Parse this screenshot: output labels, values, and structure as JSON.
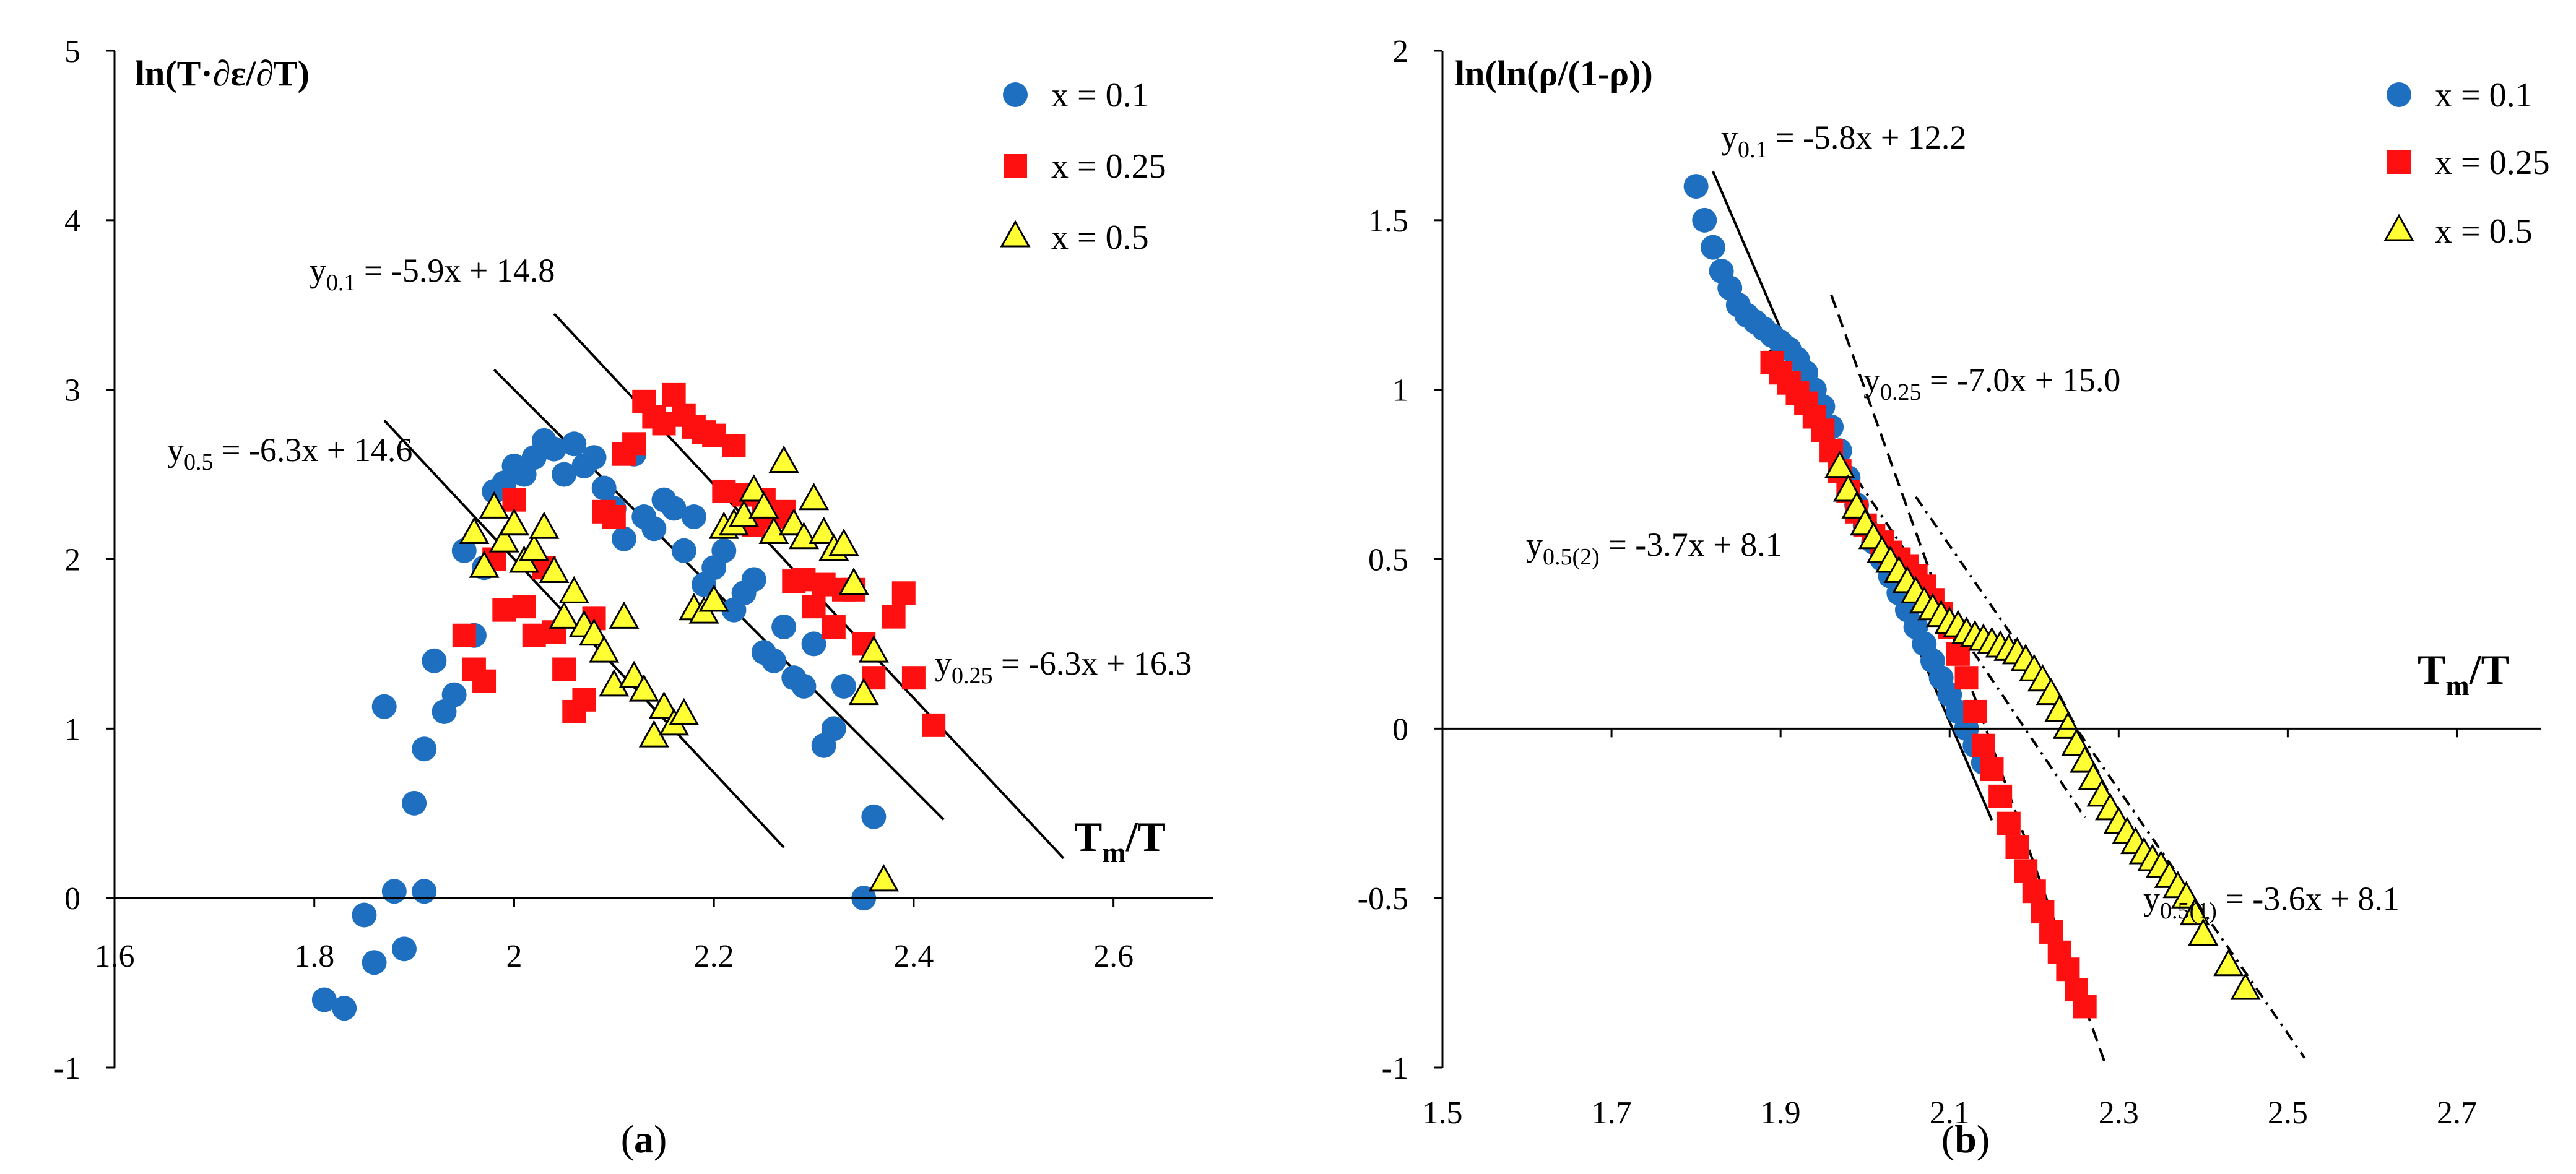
{
  "chart_data": [
    {
      "panel_label": "(a)",
      "type": "scatter",
      "ylabel": "ln(T·∂ε/∂T)",
      "xlabel": {
        "main": "T",
        "sub": "m",
        "tail": "/T"
      },
      "xlim": [
        1.6,
        2.7
      ],
      "ylim": [
        -1,
        5
      ],
      "xticks": [
        1.6,
        1.8,
        2.0,
        2.2,
        2.4,
        2.6
      ],
      "xtick_labels": [
        "1.6",
        "1.8",
        "2",
        "2.2",
        "2.4",
        "2.6"
      ],
      "yticks": [
        -1,
        0,
        1,
        2,
        3,
        4,
        5
      ],
      "ytick_labels": [
        "-1",
        "0",
        "1",
        "2",
        "3",
        "4",
        "5"
      ],
      "grid": false,
      "legend_position": "top-right",
      "series": [
        {
          "name": "x = 0.1",
          "marker": "circle",
          "color": "#1f6fc0",
          "x": [
            1.81,
            1.83,
            1.85,
            1.86,
            1.87,
            1.88,
            1.89,
            1.9,
            1.91,
            1.91,
            1.92,
            1.93,
            1.94,
            1.95,
            1.96,
            1.97,
            1.98,
            1.99,
            2.0,
            2.01,
            2.02,
            2.03,
            2.04,
            2.05,
            2.06,
            2.07,
            2.08,
            2.09,
            2.1,
            2.11,
            2.12,
            2.13,
            2.14,
            2.15,
            2.16,
            2.17,
            2.18,
            2.19,
            2.2,
            2.21,
            2.22,
            2.23,
            2.24,
            2.25,
            2.26,
            2.27,
            2.28,
            2.29,
            2.3,
            2.31,
            2.32,
            2.33,
            2.35,
            2.36
          ],
          "y": [
            -0.6,
            -0.65,
            -0.1,
            -0.38,
            1.13,
            0.04,
            -0.3,
            0.56,
            0.88,
            0.04,
            1.4,
            1.1,
            1.2,
            2.05,
            1.55,
            1.95,
            2.4,
            2.45,
            2.55,
            2.5,
            2.6,
            2.7,
            2.65,
            2.5,
            2.68,
            2.55,
            2.6,
            2.42,
            2.3,
            2.12,
            2.62,
            2.25,
            2.18,
            2.35,
            2.3,
            2.05,
            2.25,
            1.85,
            1.95,
            2.05,
            1.7,
            1.8,
            1.88,
            1.45,
            1.4,
            1.6,
            1.3,
            1.25,
            1.5,
            0.9,
            1.0,
            1.25,
            0.0,
            0.48
          ]
        },
        {
          "name": "x = 0.25",
          "marker": "square",
          "color": "#ff1010",
          "x": [
            1.95,
            1.96,
            1.97,
            1.98,
            1.99,
            2.0,
            2.01,
            2.02,
            2.03,
            2.04,
            2.05,
            2.06,
            2.07,
            2.08,
            2.09,
            2.1,
            2.11,
            2.12,
            2.13,
            2.14,
            2.15,
            2.16,
            2.17,
            2.18,
            2.19,
            2.2,
            2.21,
            2.22,
            2.23,
            2.24,
            2.25,
            2.26,
            2.27,
            2.28,
            2.29,
            2.3,
            2.31,
            2.32,
            2.33,
            2.34,
            2.35,
            2.36,
            2.38,
            2.39,
            2.4,
            2.42
          ],
          "y": [
            1.55,
            1.35,
            1.28,
            2.0,
            1.7,
            2.35,
            1.72,
            1.55,
            1.95,
            1.57,
            1.35,
            1.1,
            1.17,
            1.65,
            2.28,
            2.25,
            2.62,
            2.68,
            2.93,
            2.84,
            2.8,
            2.97,
            2.85,
            2.78,
            2.75,
            2.73,
            2.4,
            2.67,
            2.38,
            2.2,
            2.35,
            2.25,
            2.28,
            1.87,
            1.88,
            1.72,
            1.85,
            1.6,
            1.82,
            1.82,
            1.5,
            1.3,
            1.66,
            1.8,
            1.3,
            1.02
          ]
        },
        {
          "name": "x = 0.5",
          "marker": "triangle",
          "color": "#ffff33",
          "x": [
            1.96,
            1.97,
            1.98,
            1.99,
            2.0,
            2.01,
            2.02,
            2.03,
            2.04,
            2.05,
            2.06,
            2.07,
            2.08,
            2.09,
            2.1,
            2.11,
            2.12,
            2.13,
            2.14,
            2.15,
            2.16,
            2.17,
            2.18,
            2.19,
            2.2,
            2.21,
            2.22,
            2.23,
            2.24,
            2.25,
            2.26,
            2.27,
            2.28,
            2.29,
            2.3,
            2.31,
            2.32,
            2.33,
            2.34,
            2.35,
            2.36,
            2.37
          ],
          "y": [
            2.15,
            1.95,
            2.3,
            2.1,
            2.2,
            1.98,
            2.05,
            2.18,
            1.92,
            1.65,
            1.8,
            1.6,
            1.55,
            1.45,
            1.25,
            1.65,
            1.3,
            1.22,
            0.95,
            1.12,
            1.02,
            1.08,
            1.7,
            1.68,
            1.75,
            2.18,
            2.2,
            2.25,
            2.4,
            2.3,
            2.15,
            2.57,
            2.2,
            2.12,
            2.35,
            2.15,
            2.05,
            2.08,
            1.85,
            1.2,
            1.45,
            0.1
          ]
        }
      ],
      "fit_lines": [
        {
          "label": "y0.1",
          "equation": "-5.9x + 14.8",
          "x_range": [
            1.98,
            2.43
          ],
          "style": "solid"
        },
        {
          "label": "y0.25",
          "equation": "-6.3x + 16.3",
          "x_range": [
            2.04,
            2.55
          ],
          "style": "solid"
        },
        {
          "label": "y0.5",
          "equation": "-6.3x + 14.6",
          "x_range": [
            1.87,
            2.27
          ],
          "style": "solid"
        }
      ],
      "annotations": [
        {
          "base": "y",
          "sub": "0.1",
          "text": " = -5.9x + 14.8"
        },
        {
          "base": "y",
          "sub": "0.5",
          "text": " = -6.3x + 14.6"
        },
        {
          "base": "y",
          "sub": "0.25",
          "text": " = -6.3x + 16.3"
        }
      ]
    },
    {
      "panel_label": "(b)",
      "type": "scatter",
      "ylabel": "ln(ln(ρ/(1-ρ))",
      "xlabel": {
        "main": "T",
        "sub": "m",
        "tail": "/T"
      },
      "xlim": [
        1.5,
        2.8
      ],
      "ylim": [
        -1,
        2
      ],
      "xticks": [
        1.5,
        1.7,
        1.9,
        2.1,
        2.3,
        2.5,
        2.7
      ],
      "xtick_labels": [
        "1.5",
        "1.7",
        "1.9",
        "2.1",
        "2.3",
        "2.5",
        "2.7"
      ],
      "yticks": [
        -1,
        -0.5,
        0,
        0.5,
        1,
        1.5,
        2
      ],
      "ytick_labels": [
        "-1",
        "-0.5",
        "0",
        "0.5",
        "1",
        "1.5",
        "2"
      ],
      "grid": false,
      "legend_position": "top-right",
      "series": [
        {
          "name": "x = 0.1",
          "marker": "circle",
          "color": "#1f6fc0",
          "x": [
            1.8,
            1.81,
            1.82,
            1.83,
            1.84,
            1.85,
            1.86,
            1.87,
            1.88,
            1.89,
            1.9,
            1.91,
            1.92,
            1.93,
            1.94,
            1.95,
            1.96,
            1.97,
            1.98,
            1.99,
            2.0,
            2.01,
            2.02,
            2.03,
            2.04,
            2.05,
            2.06,
            2.07,
            2.08,
            2.09,
            2.1,
            2.11,
            2.12,
            2.13,
            2.14
          ],
          "y": [
            1.6,
            1.5,
            1.42,
            1.35,
            1.3,
            1.25,
            1.22,
            1.2,
            1.18,
            1.16,
            1.14,
            1.12,
            1.09,
            1.05,
            1.0,
            0.95,
            0.89,
            0.82,
            0.74,
            0.66,
            0.6,
            0.55,
            0.5,
            0.45,
            0.4,
            0.35,
            0.3,
            0.25,
            0.2,
            0.15,
            0.1,
            0.05,
            0.0,
            -0.05,
            -0.1
          ]
        },
        {
          "name": "x = 0.25",
          "marker": "square",
          "color": "#ff1010",
          "x": [
            1.89,
            1.9,
            1.91,
            1.92,
            1.93,
            1.94,
            1.95,
            1.96,
            1.97,
            1.98,
            1.99,
            2.0,
            2.01,
            2.02,
            2.03,
            2.04,
            2.05,
            2.06,
            2.07,
            2.08,
            2.09,
            2.1,
            2.11,
            2.12,
            2.13,
            2.14,
            2.15,
            2.16,
            2.17,
            2.18,
            2.19,
            2.2,
            2.21,
            2.22,
            2.23,
            2.24,
            2.25,
            2.26
          ],
          "y": [
            1.08,
            1.05,
            1.02,
            0.99,
            0.96,
            0.92,
            0.88,
            0.82,
            0.76,
            0.7,
            0.64,
            0.6,
            0.57,
            0.55,
            0.52,
            0.5,
            0.48,
            0.45,
            0.42,
            0.38,
            0.34,
            0.3,
            0.22,
            0.15,
            0.05,
            -0.05,
            -0.12,
            -0.2,
            -0.28,
            -0.35,
            -0.42,
            -0.48,
            -0.54,
            -0.6,
            -0.66,
            -0.71,
            -0.77,
            -0.82
          ]
        },
        {
          "name": "x = 0.5",
          "marker": "triangle",
          "color": "#ffff33",
          "x": [
            1.97,
            1.98,
            1.99,
            2.0,
            2.01,
            2.02,
            2.03,
            2.04,
            2.05,
            2.06,
            2.07,
            2.08,
            2.09,
            2.1,
            2.11,
            2.12,
            2.13,
            2.14,
            2.15,
            2.16,
            2.17,
            2.18,
            2.19,
            2.2,
            2.21,
            2.22,
            2.23,
            2.24,
            2.25,
            2.26,
            2.27,
            2.28,
            2.29,
            2.3,
            2.31,
            2.32,
            2.33,
            2.34,
            2.35,
            2.36,
            2.37,
            2.38,
            2.39,
            2.4,
            2.43,
            2.45
          ],
          "y": [
            0.77,
            0.7,
            0.65,
            0.6,
            0.56,
            0.52,
            0.49,
            0.46,
            0.43,
            0.4,
            0.37,
            0.35,
            0.33,
            0.31,
            0.3,
            0.28,
            0.27,
            0.26,
            0.25,
            0.24,
            0.23,
            0.22,
            0.2,
            0.17,
            0.14,
            0.1,
            0.05,
            0.0,
            -0.05,
            -0.1,
            -0.15,
            -0.2,
            -0.24,
            -0.28,
            -0.31,
            -0.34,
            -0.37,
            -0.39,
            -0.41,
            -0.44,
            -0.47,
            -0.5,
            -0.55,
            -0.61,
            -0.7,
            -0.77
          ]
        }
      ],
      "fit_lines": [
        {
          "label": "y0.1",
          "equation": "-5.8x + 12.2",
          "x_range": [
            1.82,
            2.15
          ],
          "style": "solid"
        },
        {
          "label": "y0.25",
          "equation": "-7.0x + 15.0",
          "x_range": [
            1.96,
            2.285
          ],
          "style": "dashed"
        },
        {
          "label": "y0.5(2)",
          "equation": "-3.7x + 8.1",
          "x_range": [
            1.87,
            2.26
          ],
          "style": "dashdot"
        },
        {
          "label": "y0.5(1)",
          "equation": "-3.6x + 8.1",
          "x_range": [
            2.06,
            2.52
          ],
          "style": "dashdot"
        }
      ],
      "annotations": [
        {
          "base": "y",
          "sub": "0.1",
          "text": " = -5.8x + 12.2"
        },
        {
          "base": "y",
          "sub": "0.25",
          "text": " = -7.0x + 15.0"
        },
        {
          "base": "y",
          "sub": "0.5(2)",
          "text": " = -3.7x + 8.1"
        },
        {
          "base": "y",
          "sub": "0.5(1)",
          "text": " = -3.6x + 8.1"
        }
      ]
    }
  ]
}
